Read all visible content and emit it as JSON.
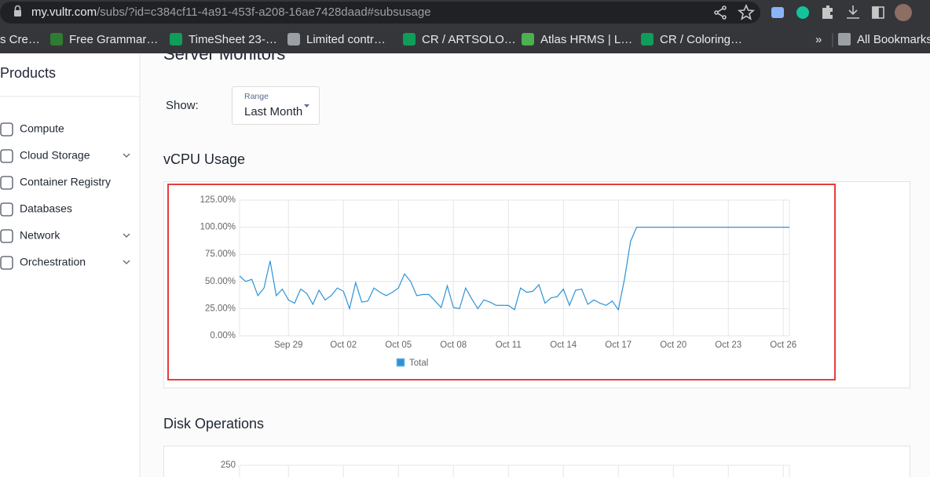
{
  "browser": {
    "url_host": "my.vultr.com",
    "url_path": "/subs/?id=c384cf11-4a91-453f-a208-16ae7428daad#subsusage",
    "bookmarks": [
      "s Cre…",
      "Free Grammar…",
      "TimeSheet 23-…",
      "Limited contr…",
      "CR / ARTSOLO…",
      "Atlas HRMS | L…",
      "CR / Coloring…",
      "»",
      "All Bookmarks"
    ]
  },
  "sidebar": {
    "title": "Products",
    "items": [
      "Compute",
      "Cloud Storage",
      "Container Registry",
      "Databases",
      "Network",
      "Orchestration"
    ]
  },
  "main": {
    "heading": "Server Monitors",
    "show_label": "Show:",
    "range_label": "Range",
    "range_value": "Last Month"
  },
  "chart_data": [
    {
      "type": "line",
      "title": "vCPU Usage",
      "categories": [
        null,
        null,
        null,
        null,
        null,
        null,
        null,
        null,
        "Sep 29",
        null,
        null,
        null,
        null,
        null,
        null,
        null,
        null,
        "Oct 02",
        null,
        null,
        null,
        null,
        null,
        null,
        null,
        null,
        "Oct 05",
        null,
        null,
        null,
        null,
        null,
        null,
        null,
        null,
        "Oct 08",
        null,
        null,
        null,
        null,
        null,
        null,
        null,
        null,
        "Oct 11",
        null,
        null,
        null,
        null,
        null,
        null,
        null,
        null,
        "Oct 14",
        null,
        null,
        null,
        null,
        null,
        null,
        null,
        null,
        "Oct 17",
        null,
        null,
        null,
        null,
        null,
        null,
        null,
        null,
        "Oct 20",
        null,
        null,
        null,
        null,
        null,
        null,
        null,
        null,
        "Oct 23",
        null,
        null,
        null,
        null,
        null,
        null,
        null,
        null,
        "Oct 26",
        null
      ],
      "series": [
        {
          "name": "Total",
          "color": "#2e93d6",
          "values": [
            55,
            50,
            52,
            37,
            44,
            69,
            37,
            43,
            33,
            30,
            43,
            39,
            29,
            42,
            33,
            37,
            44,
            41,
            25,
            49,
            31,
            32,
            44,
            40,
            37,
            40,
            44,
            57,
            50,
            37,
            38,
            38,
            32,
            26,
            46,
            26,
            25,
            44,
            34,
            25,
            33,
            31,
            28,
            28,
            28,
            24,
            44,
            40,
            41,
            47,
            30,
            35,
            36,
            43,
            28,
            42,
            43,
            29,
            33,
            30,
            28,
            32,
            24,
            52,
            87,
            100,
            100,
            100,
            100,
            100,
            100,
            100,
            100,
            100,
            100,
            100,
            100,
            100,
            100,
            100,
            100,
            100,
            100,
            100,
            100,
            100,
            100,
            100,
            100,
            100,
            100
          ]
        }
      ],
      "ylim": [
        0,
        125
      ],
      "yticks": [
        {
          "value": 0,
          "label": "0.00%"
        },
        {
          "value": 25,
          "label": "25.00%"
        },
        {
          "value": 50,
          "label": "50.00%"
        },
        {
          "value": 75,
          "label": "75.00%"
        },
        {
          "value": 100,
          "label": "100.00%"
        },
        {
          "value": 125,
          "label": "125.00%"
        }
      ],
      "grid": true
    },
    {
      "type": "line",
      "title": "Disk Operations",
      "yticks": [
        250
      ],
      "grid": true
    }
  ]
}
